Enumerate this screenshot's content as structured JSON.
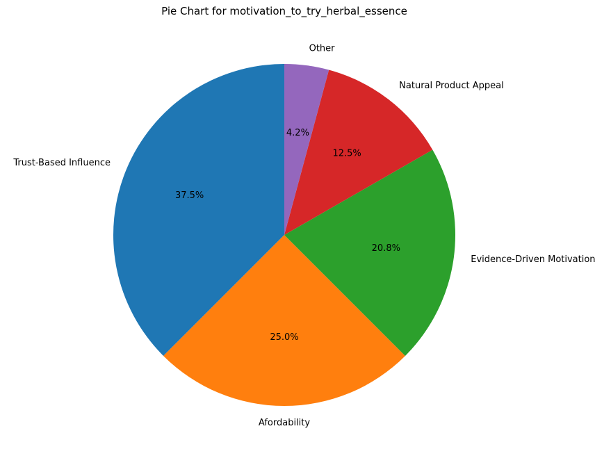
{
  "chart_data": {
    "type": "pie",
    "title": "Pie Chart for motivation_to_try_herbal_essence",
    "start_angle_deg": 90,
    "direction": "counterclockwise",
    "slices": [
      {
        "label": "Trust-Based Influence",
        "value": 37.5,
        "pct_label": "37.5%",
        "color": "#1f77b4"
      },
      {
        "label": "Afordability",
        "value": 25.0,
        "pct_label": "25.0%",
        "color": "#ff7f0e"
      },
      {
        "label": "Evidence-Driven Motivation",
        "value": 20.8,
        "pct_label": "20.8%",
        "color": "#2ca02c"
      },
      {
        "label": "Natural Product Appeal",
        "value": 12.5,
        "pct_label": "12.5%",
        "color": "#d62728"
      },
      {
        "label": "Other",
        "value": 4.2,
        "pct_label": "4.2%",
        "color": "#9467bd"
      }
    ]
  }
}
